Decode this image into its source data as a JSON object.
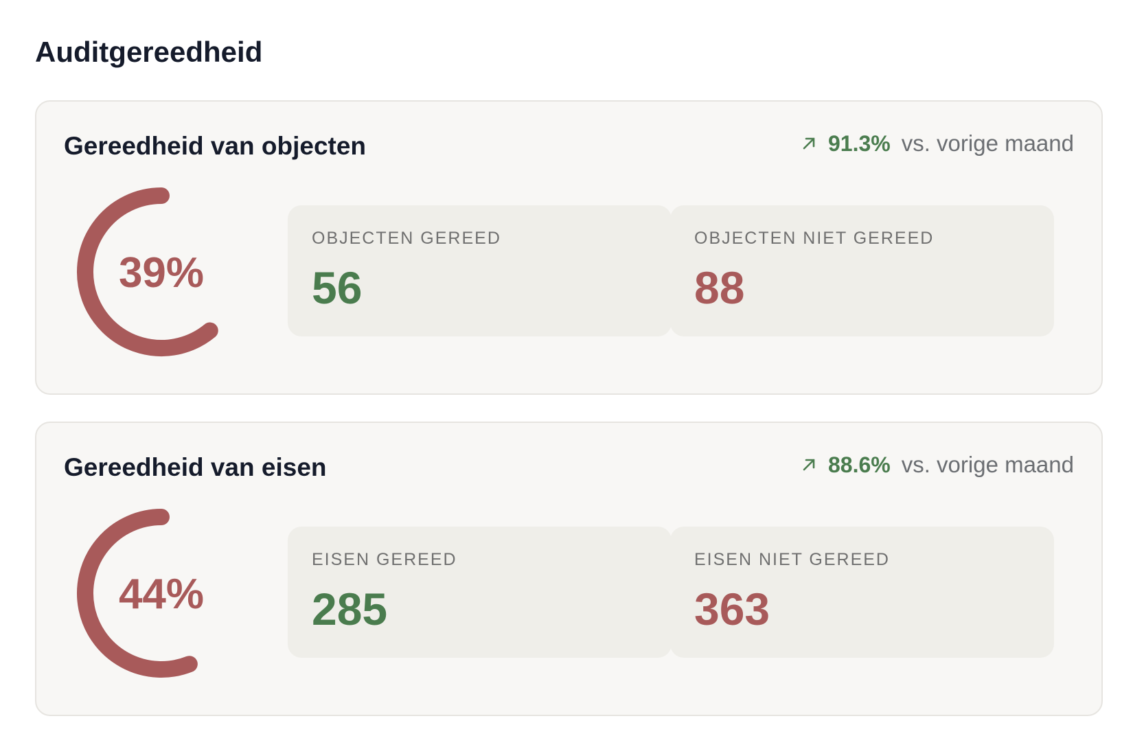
{
  "title": "Auditgereedheid",
  "cards": [
    {
      "title": "Gereedheid van objecten",
      "trend": "91.3%",
      "comparison": "vs. vorige maand",
      "gauge": {
        "value": 39,
        "label": "39%"
      },
      "stats": [
        {
          "label": "OBJECTEN GEREED",
          "value": "56"
        },
        {
          "label": "OBJECTEN NIET GEREED",
          "value": "88"
        }
      ]
    },
    {
      "title": "Gereedheid van eisen",
      "trend": "88.6%",
      "comparison": "vs. vorige maand",
      "gauge": {
        "value": 44,
        "label": "44%"
      },
      "stats": [
        {
          "label": "EISEN GEREED",
          "value": "285"
        },
        {
          "label": "EISEN NIET GEREED",
          "value": "363"
        }
      ]
    }
  ]
}
